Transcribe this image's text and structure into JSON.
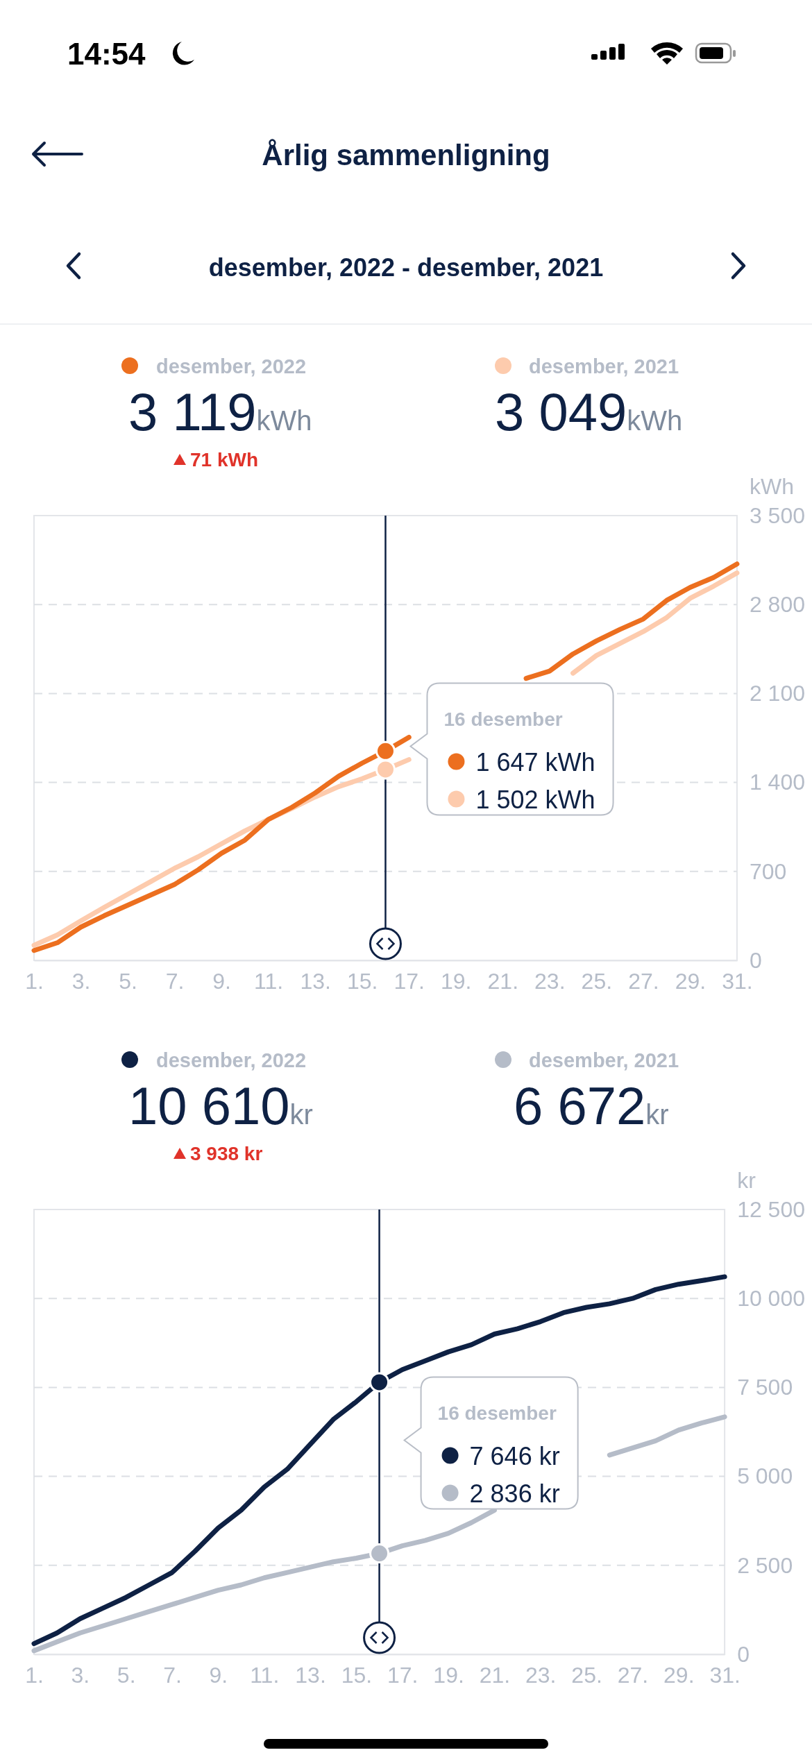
{
  "chart_data": [
    {
      "type": "line",
      "title": "Årlig sammenligning",
      "subtitle": "desember, 2022 - desember, 2021",
      "ylabel": "kWh",
      "annotations": [
        "14:54",
        "3 119kWh",
        "71 kWh",
        "3 049kWh",
        "16 desember",
        "1 647 kWh",
        "1 502 kWh"
      ],
      "x": [
        1,
        2,
        3,
        4,
        5,
        6,
        7,
        8,
        9,
        10,
        11,
        12,
        13,
        14,
        15,
        16,
        17,
        18,
        19,
        20,
        21,
        22,
        23,
        24,
        25,
        26,
        27,
        28,
        29,
        30,
        31
      ],
      "series": [
        {
          "name": "desember, 2022",
          "color": "#ec6f1f",
          "values": [
            78,
            139,
            262,
            352,
            434,
            516,
            598,
            712,
            843,
            946,
            1109,
            1204,
            1318,
            1449,
            1552,
            1647,
            1756,
            null,
            null,
            null,
            null,
            2219,
            2276,
            2411,
            2514,
            2604,
            2686,
            2833,
            2935,
            3013,
            3119
          ]
        },
        {
          "name": "desember, 2021",
          "color": "#fdcbad",
          "values": [
            119,
            201,
            311,
            418,
            520,
            622,
            725,
            815,
            917,
            1019,
            1109,
            1195,
            1286,
            1367,
            1429,
            1502,
            1580,
            null,
            null,
            null,
            null,
            null,
            null,
            2260,
            2399,
            2493,
            2587,
            2698,
            2849,
            2944,
            3049
          ]
        }
      ],
      "xlim": [
        1,
        31
      ],
      "xticks": [
        {
          "value": 1,
          "label": "1."
        },
        {
          "value": 3,
          "label": "3."
        },
        {
          "value": 5,
          "label": "5."
        },
        {
          "value": 7,
          "label": "7."
        },
        {
          "value": 9,
          "label": "9."
        },
        {
          "value": 11,
          "label": "11."
        },
        {
          "value": 13,
          "label": "13."
        },
        {
          "value": 15,
          "label": "15."
        },
        {
          "value": 17,
          "label": "17."
        },
        {
          "value": 19,
          "label": "19."
        },
        {
          "value": 21,
          "label": "21."
        },
        {
          "value": 23,
          "label": "23."
        },
        {
          "value": 25,
          "label": "25."
        },
        {
          "value": 27,
          "label": "27."
        },
        {
          "value": 29,
          "label": "29."
        },
        {
          "value": 31,
          "label": "31."
        }
      ],
      "ylim": [
        0,
        3500
      ],
      "yticks": [
        {
          "value": 0,
          "label": "0"
        },
        {
          "value": 700,
          "label": "700"
        },
        {
          "value": 1400,
          "label": "1 400"
        },
        {
          "value": 2100,
          "label": "2 100"
        },
        {
          "value": 2800,
          "label": "2 800"
        },
        {
          "value": 3500,
          "label": "3 500"
        }
      ],
      "ref_lines": [
        {
          "axis": "x",
          "value": 16,
          "color": "#0e2144"
        }
      ],
      "grid": "y",
      "legend": "top"
    },
    {
      "type": "line",
      "ylabel": "kr",
      "annotations": [
        "10 610kr",
        "3 938 kr",
        "6 672kr",
        "16 desember",
        "7 646 kr",
        "2 836 kr"
      ],
      "x": [
        1,
        2,
        3,
        4,
        5,
        6,
        7,
        8,
        9,
        10,
        11,
        12,
        13,
        14,
        15,
        16,
        17,
        18,
        19,
        20,
        21,
        22,
        23,
        24,
        25,
        26,
        27,
        28,
        29,
        30,
        31
      ],
      "series": [
        {
          "name": "desember, 2022",
          "color": "#0e2144",
          "values": [
            300,
            600,
            1000,
            1300,
            1600,
            1950,
            2300,
            2900,
            3550,
            4050,
            4700,
            5200,
            5900,
            6600,
            7100,
            7646,
            8000,
            8250,
            8500,
            8700,
            9000,
            9150,
            9350,
            9600,
            9750,
            9850,
            10000,
            10250,
            10400,
            10500,
            10610
          ]
        },
        {
          "name": "desember, 2021",
          "color": "#b5bcc8",
          "values": [
            100,
            350,
            600,
            800,
            1000,
            1200,
            1400,
            1600,
            1800,
            1950,
            2150,
            2300,
            2450,
            2600,
            2700,
            2836,
            3050,
            3200,
            3400,
            3700,
            4050,
            null,
            null,
            null,
            null,
            5600,
            5800,
            6000,
            6300,
            6500,
            6672
          ]
        }
      ],
      "xlim": [
        1,
        31
      ],
      "xticks": [
        {
          "value": 1,
          "label": "1."
        },
        {
          "value": 3,
          "label": "3."
        },
        {
          "value": 5,
          "label": "5."
        },
        {
          "value": 7,
          "label": "7."
        },
        {
          "value": 9,
          "label": "9."
        },
        {
          "value": 11,
          "label": "11."
        },
        {
          "value": 13,
          "label": "13."
        },
        {
          "value": 15,
          "label": "15."
        },
        {
          "value": 17,
          "label": "17."
        },
        {
          "value": 19,
          "label": "19."
        },
        {
          "value": 21,
          "label": "21."
        },
        {
          "value": 23,
          "label": "23."
        },
        {
          "value": 25,
          "label": "25."
        },
        {
          "value": 27,
          "label": "27."
        },
        {
          "value": 29,
          "label": "29."
        },
        {
          "value": 31,
          "label": "31."
        }
      ],
      "ylim": [
        0,
        12500
      ],
      "yticks": [
        {
          "value": 0,
          "label": "0"
        },
        {
          "value": 2500,
          "label": "2 500"
        },
        {
          "value": 5000,
          "label": "5 000"
        },
        {
          "value": 7500,
          "label": "7 500"
        },
        {
          "value": 10000,
          "label": "10 000"
        },
        {
          "value": 12500,
          "label": "12 500"
        }
      ],
      "ref_lines": [
        {
          "axis": "x",
          "value": 16,
          "color": "#0e2144"
        }
      ],
      "grid": "y",
      "legend": "top"
    }
  ]
}
